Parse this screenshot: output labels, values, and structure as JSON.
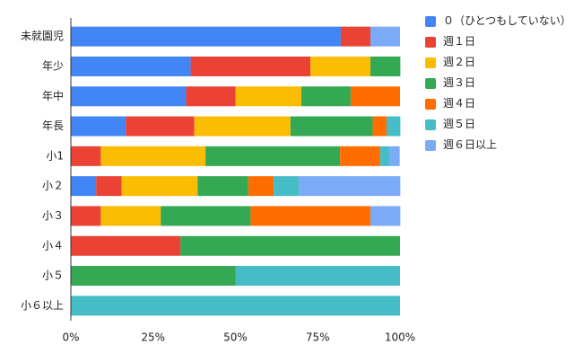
{
  "chart_data": {
    "type": "stacked-barh",
    "categories": [
      "未就園児",
      "年少",
      "年中",
      "年長",
      "小1",
      "小２",
      "小３",
      "小４",
      "小５",
      "小６以上"
    ],
    "series": [
      {
        "name": "０（ひとつもしていない）",
        "color": "#4285f4",
        "values": [
          82,
          36.4,
          35,
          16.7,
          0,
          7.7,
          0,
          0,
          0,
          0
        ]
      },
      {
        "name": "週１日",
        "color": "#ea4335",
        "values": [
          9,
          36.4,
          15,
          20.8,
          9.1,
          7.7,
          9.1,
          33.3,
          0,
          0
        ]
      },
      {
        "name": "週２日",
        "color": "#fbbc04",
        "values": [
          0,
          18.2,
          20,
          29.2,
          31.8,
          23.1,
          18.2,
          0,
          0,
          0
        ]
      },
      {
        "name": "週３日",
        "color": "#34a853",
        "values": [
          0,
          9.1,
          15,
          25,
          40.9,
          15.4,
          27.3,
          66.7,
          50,
          0
        ]
      },
      {
        "name": "週４日",
        "color": "#ff6d01",
        "values": [
          0,
          0,
          15,
          4.2,
          12.1,
          7.7,
          36.4,
          0,
          0,
          0
        ]
      },
      {
        "name": "週５日",
        "color": "#46bdc6",
        "values": [
          0,
          0,
          0,
          4.2,
          3,
          7.7,
          0,
          0,
          50,
          100
        ]
      },
      {
        "name": "週６日以上",
        "color": "#7baaf7",
        "values": [
          9,
          0,
          0,
          0,
          3,
          30.8,
          9.1,
          0,
          0,
          0
        ]
      }
    ],
    "xlim": [
      0,
      100
    ],
    "xticks": [
      {
        "value": 0,
        "label": "0%"
      },
      {
        "value": 25,
        "label": "25%"
      },
      {
        "value": 50,
        "label": "50%"
      },
      {
        "value": 75,
        "label": "75%"
      },
      {
        "value": 100,
        "label": "100%"
      }
    ],
    "legend": "right"
  }
}
